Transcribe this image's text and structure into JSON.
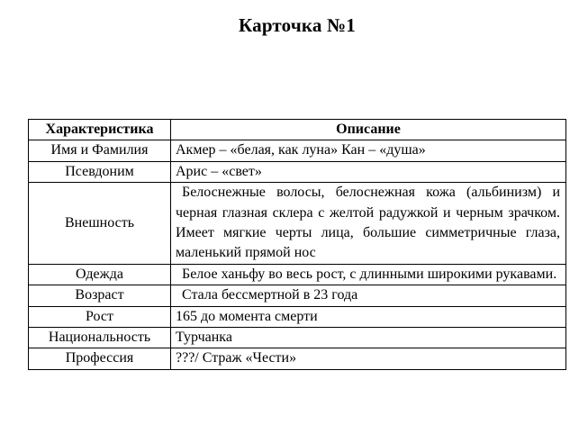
{
  "page": {
    "title": "Карточка №1",
    "background_color": "#ffffff",
    "text_color": "#000000",
    "border_color": "#000000"
  },
  "table": {
    "headers": [
      "Характеристика",
      "Описание"
    ],
    "rows": [
      {
        "label": "Имя и Фамилия",
        "value": "Акмер – «белая, как луна» Кан – «душа»",
        "justify": false,
        "indent": false
      },
      {
        "label": "Псевдоним",
        "value": "Арис – «свет»",
        "justify": false,
        "indent": false
      },
      {
        "label": "Внешность",
        "value": "Белоснежные волосы, белоснежная кожа (альбинизм) и черная глазная склера с желтой радужкой и черным зрачком. Имеет мягкие черты лица, большие симметричные глаза, маленький прямой нос",
        "justify": true,
        "indent": true
      },
      {
        "label": "Одежда",
        "value": "Белое ханьфу во весь рост, с длинными широкими рукавами.",
        "justify": true,
        "indent": true
      },
      {
        "label": "Возраст",
        "value": "Стала бессмертной в 23 года",
        "justify": false,
        "indent": true
      },
      {
        "label": "Рост",
        "value": "165 до момента смерти",
        "justify": false,
        "indent": false
      },
      {
        "label": "Национальность",
        "value": "Турчанка",
        "justify": false,
        "indent": false
      },
      {
        "label": "Профессия",
        "value": "???/ Страж «Чести»",
        "justify": false,
        "indent": false
      }
    ]
  }
}
